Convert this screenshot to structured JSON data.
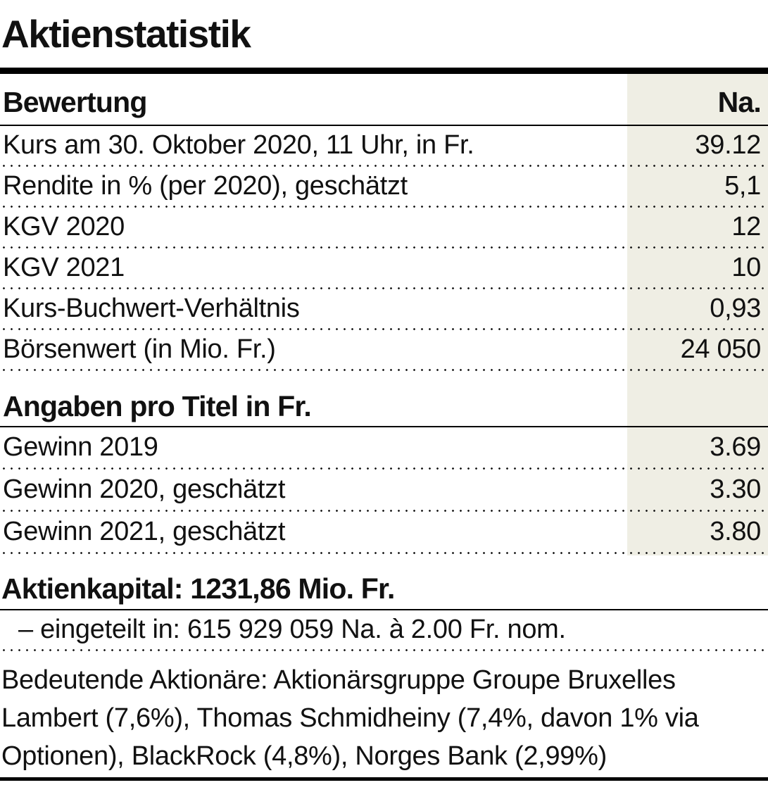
{
  "chart_data": {
    "type": "table",
    "title": "Aktienstatistik",
    "sections": [
      {
        "header": "Bewertung",
        "value_header": "Na.",
        "rows": [
          {
            "label": "Kurs am 30. Oktober 2020, 11 Uhr, in Fr.",
            "value": "39.12"
          },
          {
            "label": "Rendite in % (per 2020), geschätzt",
            "value": "5,1"
          },
          {
            "label": "KGV 2020",
            "value": "12"
          },
          {
            "label": "KGV 2021",
            "value": "10"
          },
          {
            "label": "Kurs-Buchwert-Verhältnis",
            "value": "0,93"
          },
          {
            "label": "Börsenwert (in Mio. Fr.)",
            "value": "24 050"
          }
        ]
      },
      {
        "header": "Angaben pro Titel in Fr.",
        "rows": [
          {
            "label": "Gewinn 2019",
            "value": "3.69"
          },
          {
            "label": "Gewinn 2020, geschätzt",
            "value": "3.30"
          },
          {
            "label": "Gewinn 2021, geschätzt",
            "value": "3.80"
          }
        ]
      }
    ],
    "footnotes": {
      "capital_heading": "Aktienkapital: 1231,86 Mio. Fr.",
      "capital_detail": "– eingeteilt in: 615 929 059 Na. à 2.00 Fr. nom.",
      "shareholders": "Bedeutende Aktionäre: Aktionärsgruppe Groupe Bruxelles Lambert (7,6%), Thomas Schmidheiny (7,4%, davon 1% via Optionen), BlackRock (4,8%), Norges Bank (2,99%)"
    },
    "layout_hints": {
      "value_column_background": true,
      "row_separator": "dotted"
    }
  },
  "colors": {
    "highlight_column": "#efeee4",
    "rule": "#000000",
    "text": "#111111"
  }
}
